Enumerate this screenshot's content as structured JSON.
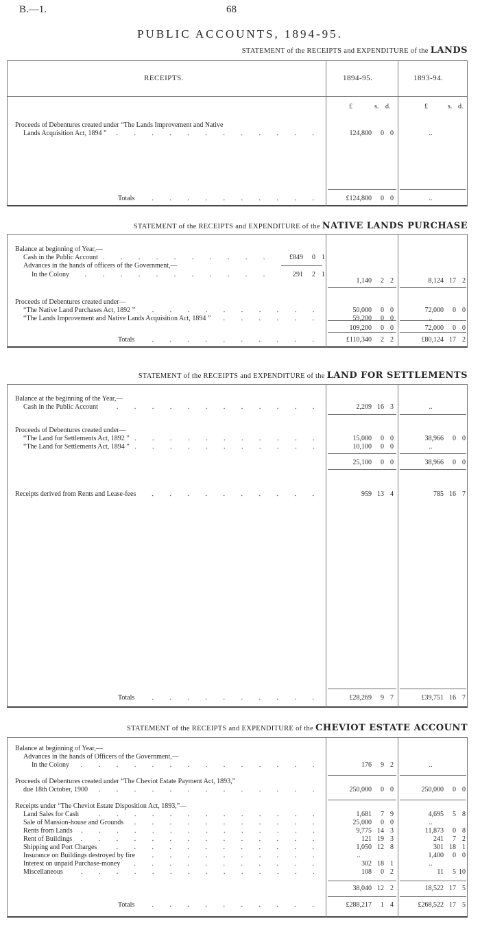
{
  "page": {
    "series_ref": "B.—1.",
    "page_number": "68",
    "title": "PUBLIC ACCOUNTS, 1894-95."
  },
  "sections": [
    {
      "title_prefix": "STATEMENT of the RECEIPTS and EXPENDITURE of the",
      "title_bold": "LANDS",
      "header": {
        "receipts": "RECEIPTS.",
        "year1": "1894-95.",
        "year2": "1893-94.",
        "units": [
          "£",
          "s.",
          "d."
        ]
      },
      "rows": [
        {
          "label": "Proceeds of Debentures created under “The Lands Improvement and Native"
        },
        {
          "label": "Lands Acquisition Act, 1894 ”",
          "c1": [
            "124,800",
            "0",
            "0"
          ],
          "c2": ".."
        },
        {
          "label": "Totals",
          "c1": [
            "£124,800",
            "0",
            "0"
          ],
          "c2": ".."
        }
      ]
    },
    {
      "title_prefix": "STATEMENT of the RECEIPTS and EXPENDITURE of the",
      "title_bold": "NATIVE LANDS PURCHASE",
      "rows": [
        {
          "label": "Balance at beginning of Year,—"
        },
        {
          "label": "Cash in the Public Account",
          "sub": [
            "£849",
            "0",
            "1"
          ]
        },
        {
          "label": "Advances in the hands of officers of the Government,—"
        },
        {
          "label": "In the Colony",
          "sub": [
            "291",
            "2",
            "1"
          ]
        },
        {
          "label": "",
          "c1": [
            "1,140",
            "2",
            "2"
          ],
          "c2": [
            "8,124",
            "17",
            "2"
          ]
        },
        {
          "label": "Proceeds of Debentures created under—"
        },
        {
          "label": "“The Native Land Purchases Act, 1892 ”",
          "c1": [
            "50,000",
            "0",
            "0"
          ],
          "c2": [
            "72,000",
            "0",
            "0"
          ]
        },
        {
          "label": "“The Lands Improvement and Native Lands Acquisition Act, 1894 ”",
          "c1": [
            "59,200",
            "0",
            "0"
          ],
          "c2": ".."
        },
        {
          "label": "",
          "c1": [
            "109,200",
            "0",
            "0"
          ],
          "c2": [
            "72,000",
            "0",
            "0"
          ]
        },
        {
          "label": "Totals",
          "c1": [
            "£110,340",
            "2",
            "2"
          ],
          "c2": [
            "£80,124",
            "17",
            "2"
          ]
        }
      ]
    },
    {
      "title_prefix": "STATEMENT of the RECEIPTS and EXPENDITURE of the",
      "title_bold": "LAND FOR SETTLEMENTS",
      "rows": [
        {
          "label": "Balance at the beginning of the Year,—"
        },
        {
          "label": "Cash in the Public Account",
          "c1": [
            "2,209",
            "16",
            "3"
          ],
          "c2": ".."
        },
        {
          "label": "Proceeds of Debentures created under—"
        },
        {
          "label": "“The Land for Settlements Act, 1892 ”",
          "c1": [
            "15,000",
            "0",
            "0"
          ],
          "c2": [
            "38,966",
            "0",
            "0"
          ]
        },
        {
          "label": "“The Land for Settlements Act, 1894 ”",
          "c1": [
            "10,100",
            "0",
            "0"
          ],
          "c2": ".."
        },
        {
          "label": "",
          "c1": [
            "25,100",
            "0",
            "0"
          ],
          "c2": [
            "38,966",
            "0",
            "0"
          ]
        },
        {
          "label": "Receipts derived from Rents and Lease-fees",
          "c1": [
            "959",
            "13",
            "4"
          ],
          "c2": [
            "785",
            "16",
            "7"
          ]
        },
        {
          "label": "Totals",
          "c1": [
            "£28,269",
            "9",
            "7"
          ],
          "c2": [
            "£39,751",
            "16",
            "7"
          ]
        }
      ]
    },
    {
      "title_prefix": "STATEMENT of the RECEIPTS and EXPENDITURE of the",
      "title_bold": "CHEVIOT ESTATE ACCOUNT",
      "rows": [
        {
          "label": "Balance at beginning of Year,—"
        },
        {
          "label": "Advances in the hands of Officers of the Government,—"
        },
        {
          "label": "In the Colony",
          "c1": [
            "176",
            "9",
            "2"
          ],
          "c2": ".."
        },
        {
          "label": "Proceeds of Debentures created under “The Cheviot Estate Payment Act, 1893,”"
        },
        {
          "label": "due 18th October, 1900",
          "c1": [
            "250,000",
            "0",
            "0"
          ],
          "c2": [
            "250,000",
            "0",
            "0"
          ]
        },
        {
          "label": "Receipts under “The Cheviot Estate Disposition Act, 1893,”—"
        },
        {
          "label": "Land Sales for Cash",
          "c1": [
            "1,681",
            "7",
            "9"
          ],
          "c2": [
            "4,695",
            "5",
            "8"
          ]
        },
        {
          "label": "Sale of Mansion-house and Grounds",
          "c1": [
            "25,000",
            "0",
            "0"
          ],
          "c2": ".."
        },
        {
          "label": "Rents from Lands",
          "c1": [
            "9,775",
            "14",
            "3"
          ],
          "c2": [
            "11,873",
            "0",
            "8"
          ]
        },
        {
          "label": "Rent of Buildings",
          "c1": [
            "121",
            "19",
            "3"
          ],
          "c2": [
            "241",
            "7",
            "2"
          ]
        },
        {
          "label": "Shipping and Port Charges",
          "c1": [
            "1,050",
            "12",
            "8"
          ],
          "c2": [
            "301",
            "18",
            "1"
          ]
        },
        {
          "label": "Insurance on Buildings destroyed by fire",
          "c1": "..",
          "c2": [
            "1,400",
            "0",
            "0"
          ]
        },
        {
          "label": "Interest on unpaid Purchase-money",
          "c1": [
            "302",
            "18",
            "1"
          ],
          "c2": ".."
        },
        {
          "label": "Miscellaneous",
          "c1": [
            "108",
            "0",
            "2"
          ],
          "c2": [
            "11",
            "5",
            "10"
          ]
        },
        {
          "label": "",
          "c1": [
            "38,040",
            "12",
            "2"
          ],
          "c2": [
            "18,522",
            "17",
            "5"
          ]
        },
        {
          "label": "Totals",
          "c1": [
            "£288,217",
            "1",
            "4"
          ],
          "c2": [
            "£268,522",
            "17",
            "5"
          ]
        }
      ]
    }
  ]
}
